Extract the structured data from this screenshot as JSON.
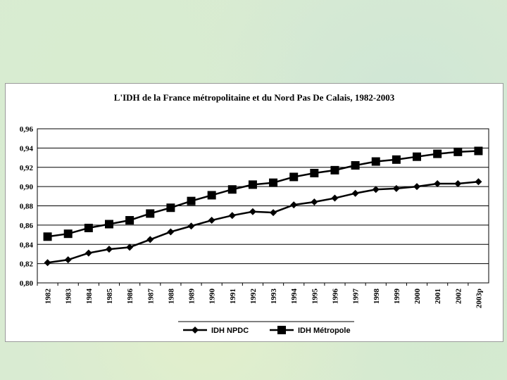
{
  "chart_data": {
    "type": "line",
    "title": "L'IDH de la France métropolitaine et du Nord Pas De Calais, 1982-2003",
    "categories": [
      "1982",
      "1983",
      "1984",
      "1985",
      "1986",
      "1987",
      "1988",
      "1989",
      "1990",
      "1991",
      "1992",
      "1993",
      "1994",
      "1995",
      "1996",
      "1997",
      "1998",
      "1999",
      "2000",
      "2001",
      "2002",
      "2003p"
    ],
    "y_ticks": [
      "0,80",
      "0,82",
      "0,84",
      "0,86",
      "0,88",
      "0,90",
      "0,92",
      "0,94",
      "0,96"
    ],
    "ylim": [
      0.8,
      0.96
    ],
    "grid": true,
    "legend_position": "bottom",
    "series": [
      {
        "name": "IDH NPDC",
        "marker": "diamond",
        "color": "#000000",
        "values": [
          0.821,
          0.824,
          0.831,
          0.835,
          0.837,
          0.845,
          0.853,
          0.859,
          0.865,
          0.87,
          0.874,
          0.873,
          0.881,
          0.884,
          0.888,
          0.893,
          0.897,
          0.898,
          0.9,
          0.903,
          0.903,
          0.905
        ]
      },
      {
        "name": "IDH Métropole",
        "marker": "square",
        "color": "#000000",
        "values": [
          0.848,
          0.851,
          0.857,
          0.861,
          0.865,
          0.872,
          0.878,
          0.885,
          0.891,
          0.897,
          0.902,
          0.904,
          0.91,
          0.914,
          0.917,
          0.922,
          0.926,
          0.928,
          0.931,
          0.934,
          0.936,
          0.937
        ]
      }
    ]
  }
}
